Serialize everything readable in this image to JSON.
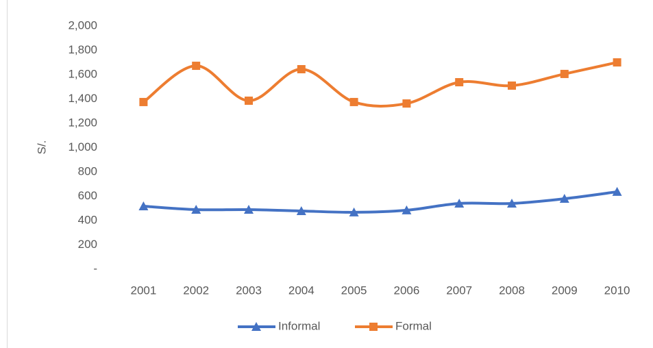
{
  "chart_data": {
    "type": "line",
    "y_label": "S/.",
    "smooth": true,
    "categories": [
      "2001",
      "2002",
      "2003",
      "2004",
      "2005",
      "2006",
      "2007",
      "2008",
      "2009",
      "2010"
    ],
    "series": [
      {
        "name": "Informal",
        "color": "#4472c4",
        "marker": "triangle",
        "values": [
          518,
          490,
          490,
          479,
          468,
          485,
          541,
          541,
          580,
          637
        ]
      },
      {
        "name": "Formal",
        "color": "#ed7d31",
        "marker": "square",
        "values": [
          1375,
          1673,
          1386,
          1645,
          1375,
          1363,
          1538,
          1510,
          1606,
          1701
        ]
      }
    ],
    "ylim": [
      0,
      2000
    ],
    "yticks": [
      {
        "value": 0,
        "label": "-"
      },
      200,
      400,
      600,
      800,
      {
        "value": 1000,
        "label": "1,000"
      },
      {
        "value": 1200,
        "label": "1,200"
      },
      {
        "value": 1400,
        "label": "1,400"
      },
      {
        "value": 1600,
        "label": "1,600"
      },
      {
        "value": 1800,
        "label": "1,800"
      },
      {
        "value": 2000,
        "label": "2,000"
      }
    ],
    "legend": "bottom"
  }
}
